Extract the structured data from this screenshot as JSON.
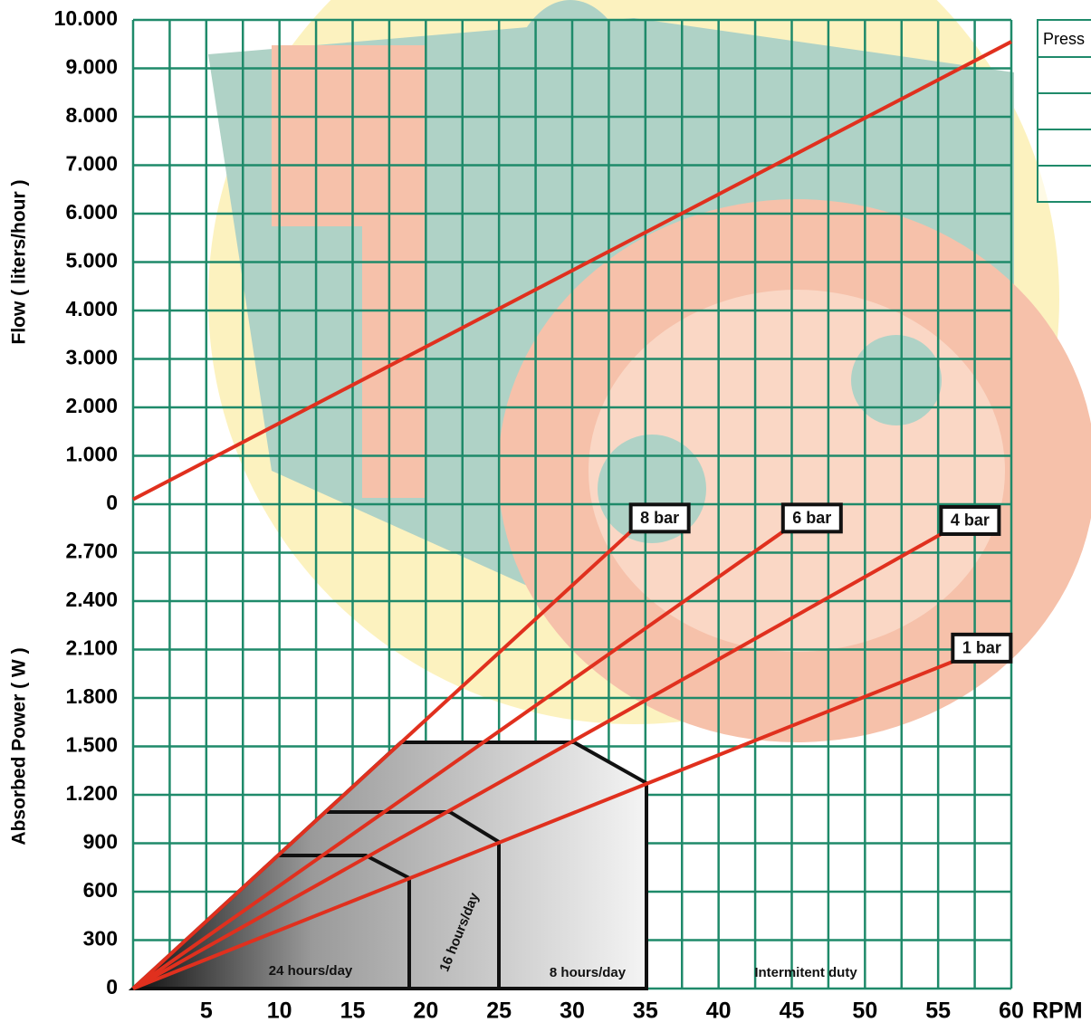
{
  "chart_data": [
    {
      "type": "line",
      "y_label": "Flow ( liters/hour )",
      "xlim": [
        0,
        60
      ],
      "ylim": [
        0,
        10000
      ],
      "yticks": [
        0,
        {
          "value": 1000,
          "label": "1.000"
        },
        {
          "value": 2000,
          "label": "2.000"
        },
        {
          "value": 3000,
          "label": "3.000"
        },
        {
          "value": 4000,
          "label": "4.000"
        },
        {
          "value": 5000,
          "label": "5.000"
        },
        {
          "value": 6000,
          "label": "6.000"
        },
        {
          "value": 7000,
          "label": "7.000"
        },
        {
          "value": 8000,
          "label": "8.000"
        },
        {
          "value": 9000,
          "label": "9.000"
        },
        {
          "value": 10000,
          "label": "10.000"
        }
      ],
      "x": [
        0,
        60
      ],
      "values": [
        100,
        9550
      ],
      "color": "#e0301e",
      "grid": true,
      "grid_color": "#1f8a6a"
    },
    {
      "type": "line",
      "y_label": "Absorbed Power ( W )",
      "x_label": "RPM",
      "xlim": [
        0,
        60
      ],
      "ylim": [
        0,
        3000
      ],
      "xticks": [
        5,
        10,
        15,
        20,
        25,
        30,
        35,
        40,
        45,
        50,
        55,
        60
      ],
      "x_minor_grid": [
        2.5,
        7.5,
        12.5,
        17.5,
        22.5,
        27.5,
        32.5,
        37.5,
        42.5,
        47.5,
        52.5,
        57.5
      ],
      "yticks": [
        0,
        300,
        600,
        900,
        {
          "value": 1200,
          "label": "1.200"
        },
        {
          "value": 1500,
          "label": "1.500"
        },
        {
          "value": 1800,
          "label": "1.800"
        },
        {
          "value": 2100,
          "label": "2.100"
        },
        {
          "value": 2400,
          "label": "2.400"
        },
        {
          "value": 2700,
          "label": "2.700"
        }
      ],
      "series": [
        {
          "name": "8 bar",
          "color": "#e0301e",
          "x": [
            0,
            34
          ],
          "values": [
            0,
            2830
          ]
        },
        {
          "name": "6 bar",
          "color": "#e0301e",
          "x": [
            0,
            44.4
          ],
          "values": [
            0,
            2830
          ]
        },
        {
          "name": "4 bar",
          "color": "#e0301e",
          "x": [
            0,
            55.2
          ],
          "values": [
            0,
            2815
          ]
        },
        {
          "name": "1 bar",
          "color": "#e0301e",
          "x": [
            0,
            56
          ],
          "values": [
            0,
            2025
          ]
        }
      ],
      "annotations": [
        "24 hours/day",
        "16 hours/day",
        "8 hours/day",
        "Intermitent duty"
      ],
      "grid": true,
      "grid_color": "#1f8a6a"
    }
  ],
  "side_table": {
    "header": "Press"
  }
}
